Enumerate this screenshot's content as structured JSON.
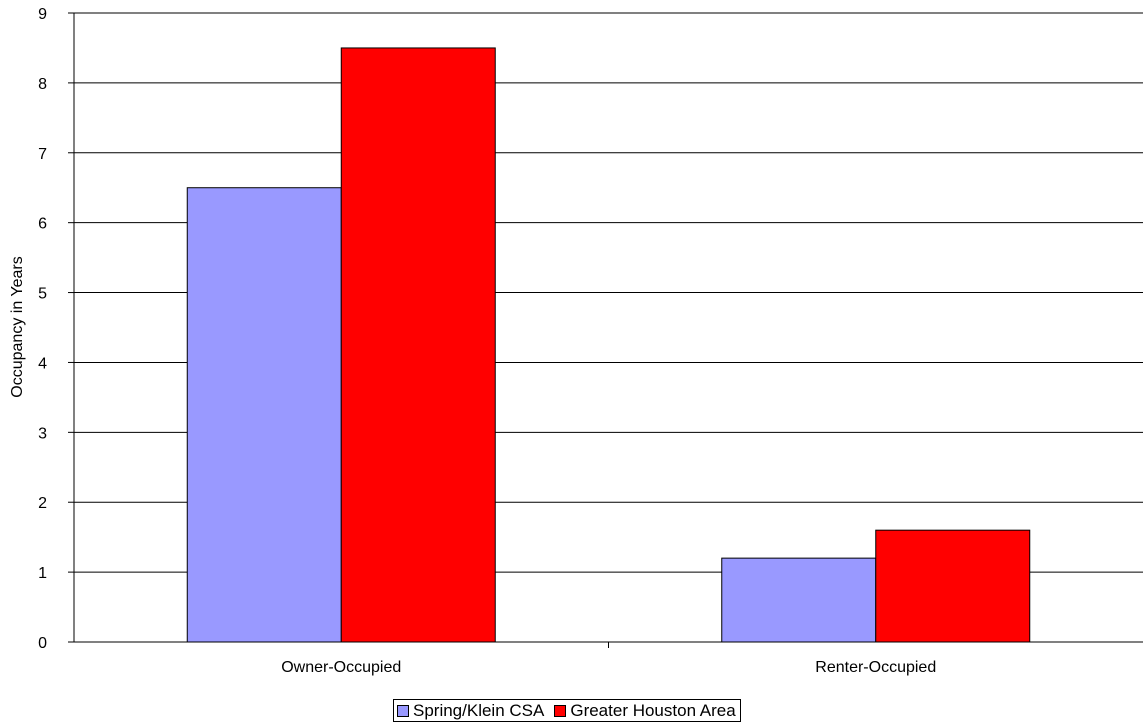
{
  "chart_data": {
    "type": "bar",
    "categories": [
      "Owner-Occupied",
      "Renter-Occupied"
    ],
    "series": [
      {
        "name": "Spring/Klein CSA",
        "values": [
          6.5,
          1.2
        ],
        "color": "#9999ff"
      },
      {
        "name": "Greater Houston Area",
        "values": [
          8.5,
          1.6
        ],
        "color": "#ff0000"
      }
    ],
    "ylabel": "Occupancy in Years",
    "ylim": [
      0,
      9
    ],
    "yticks": [
      "0",
      "1",
      "2",
      "3",
      "4",
      "5",
      "6",
      "7",
      "8",
      "9"
    ],
    "grid": true,
    "legend": "bottom"
  }
}
